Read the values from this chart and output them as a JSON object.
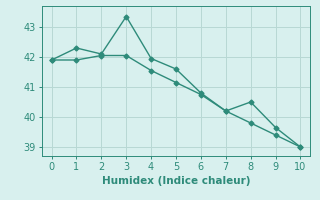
{
  "xlabel": "Humidex (Indice chaleur)",
  "ylabel": "",
  "x": [
    0,
    1,
    2,
    3,
    4,
    5,
    6,
    7,
    8,
    9,
    10
  ],
  "line1": [
    41.9,
    42.3,
    42.1,
    43.35,
    41.95,
    41.6,
    40.8,
    40.2,
    40.5,
    39.65,
    39.0
  ],
  "line2": [
    41.9,
    41.9,
    42.05,
    42.05,
    41.55,
    41.15,
    40.75,
    40.2,
    39.8,
    39.4,
    39.0
  ],
  "line_color": "#2e8b7a",
  "bg_color": "#d8f0ee",
  "grid_color": "#b8d8d4",
  "ylim": [
    38.7,
    43.7
  ],
  "xlim": [
    -0.4,
    10.4
  ],
  "yticks": [
    39,
    40,
    41,
    42,
    43
  ],
  "xticks": [
    0,
    1,
    2,
    3,
    4,
    5,
    6,
    7,
    8,
    9,
    10
  ],
  "marker": "D",
  "markersize": 2.5,
  "linewidth": 1.0,
  "tick_labelsize": 7,
  "xlabel_fontsize": 7.5
}
